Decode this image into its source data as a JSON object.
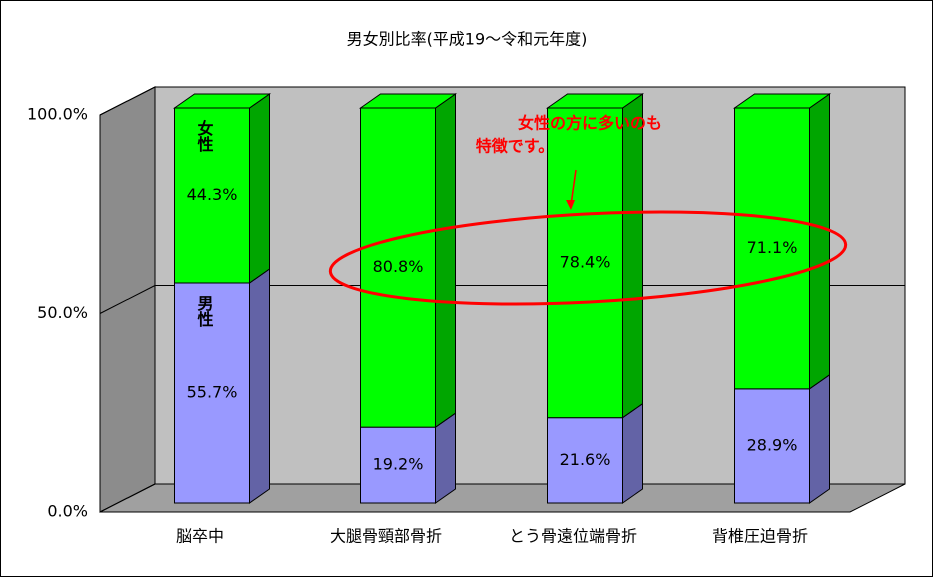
{
  "chart_data": {
    "type": "bar3d_stacked",
    "title": "男女別比率(平成19～令和元年度)",
    "categories": [
      "脳卒中",
      "大腿骨頸部骨折",
      "とう骨遠位端骨折",
      "背椎圧迫骨折"
    ],
    "series": [
      {
        "name": "男性",
        "color": "#9999ff",
        "values": [
          55.7,
          19.2,
          21.6,
          28.9
        ],
        "value_labels": [
          "55.7%",
          "19.2%",
          "21.6%",
          "28.9%"
        ]
      },
      {
        "name": "女性",
        "color": "#00ff00",
        "values": [
          44.3,
          80.8,
          78.4,
          71.1
        ],
        "value_labels": [
          "44.3%",
          "80.8%",
          "78.4%",
          "71.1%"
        ]
      }
    ],
    "ylim": [
      0,
      100
    ],
    "yticks": [
      {
        "value": 0,
        "label": "0.0%"
      },
      {
        "value": 50,
        "label": "50.0%"
      },
      {
        "value": 100,
        "label": "100.0%"
      }
    ],
    "grid": true,
    "annotations": [
      "女性の方に多いのも",
      "特徴です。"
    ]
  }
}
